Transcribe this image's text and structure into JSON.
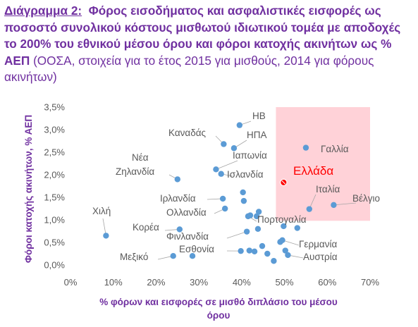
{
  "title": {
    "label": "Διάγραμμα 2:",
    "main": "Φόρος εισοδήματος και ασφαλιστικές εισφορές ως ποσοστό συνολικού κόστους μισθωτού ιδιωτικού τομέα με αποδοχές το 200% του εθνικού μέσου όρου και φόροι κατοχής ακινήτων ως % ΑΕΠ",
    "source": "(ΟΟΣΑ, στοιχεία για το έτος 2015 για μισθούς, 2014 για φόρους ακινήτων)"
  },
  "colors": {
    "point": "#5b9bd5",
    "highlight": "#ff0000",
    "highlight_region": "#ffc7ce",
    "leader": "#a6a6a6",
    "title": "#7030a0"
  },
  "chart_data": {
    "type": "scatter",
    "title": "Φόρος εισοδήματος και ασφαλιστικές εισφορές ως ποσοστό συνολικού κόστους μισθωτού ιδιωτικού τομέα με αποδοχές το 200% του εθνικού μέσου όρου και φόροι κατοχής ακινήτων ως % ΑΕΠ",
    "xlabel_line1": "% φόρων και εισφορές σε μισθό διπλάσιο του μέσου",
    "xlabel_line2": "όρου",
    "ylabel": "Φόροι κατοχής ακινήτων, % ΑΕΠ",
    "xlim": [
      0,
      70
    ],
    "ylim": [
      0,
      3.5
    ],
    "x_ticks": [
      0,
      10,
      20,
      30,
      40,
      50,
      60,
      70
    ],
    "x_tick_labels": [
      "0%",
      "10%",
      "20%",
      "30%",
      "40%",
      "50%",
      "60%",
      "70%"
    ],
    "y_ticks": [
      0,
      0.5,
      1.0,
      1.5,
      2.0,
      2.5,
      3.0,
      3.5
    ],
    "y_tick_labels": [
      "0,0%",
      "0,5%",
      "1,0%",
      "1,5%",
      "2,0%",
      "2,5%",
      "3,0%",
      "3,5%"
    ],
    "grid": false,
    "highlight_region": {
      "x": [
        48,
        70
      ],
      "y": [
        0.98,
        3.5
      ]
    },
    "labeled_points": [
      {
        "name": "ΗΒ",
        "x": 39.5,
        "y": 3.1
      },
      {
        "name": "Καναδάς",
        "x": 35.8,
        "y": 2.68
      },
      {
        "name": "ΗΠΑ",
        "x": 38.2,
        "y": 2.59
      },
      {
        "name": "Ιαπωνία",
        "x": 34.0,
        "y": 2.12
      },
      {
        "name": "Ισλανδία",
        "x": 35.2,
        "y": 2.02
      },
      {
        "name": "Νέα Ζηλανδία",
        "x": 25.0,
        "y": 1.9
      },
      {
        "name": "Ιρλανδία",
        "x": 35.6,
        "y": 1.47
      },
      {
        "name": "Ολλανδία",
        "x": 36.1,
        "y": 1.25
      },
      {
        "name": "Χιλή",
        "x": 8.3,
        "y": 0.65
      },
      {
        "name": "Κορέα",
        "x": 25.5,
        "y": 0.79
      },
      {
        "name": "Φινλανδία",
        "x": 41.2,
        "y": 0.74
      },
      {
        "name": "Εσθονία",
        "x": 39.8,
        "y": 0.31
      },
      {
        "name": "Μεξικό",
        "x": 24.0,
        "y": 0.2
      },
      {
        "name": "Πορτογαλία",
        "x": 41.5,
        "y": 1.08
      },
      {
        "name": "Γερμανία",
        "x": 49.5,
        "y": 0.55
      },
      {
        "name": "Αυστρία",
        "x": 50.8,
        "y": 0.22
      },
      {
        "name": "Γαλλία",
        "x": 55.0,
        "y": 2.6
      },
      {
        "name": "Ελλάδα",
        "x": 49.8,
        "y": 1.83
      },
      {
        "name": "Ιταλία",
        "x": 55.8,
        "y": 1.24
      },
      {
        "name": "Βέλγιο",
        "x": 61.5,
        "y": 1.33
      }
    ],
    "other_points": [
      {
        "x": 28.5,
        "y": 0.2
      },
      {
        "x": 40.3,
        "y": 1.61
      },
      {
        "x": 40.5,
        "y": 1.42
      },
      {
        "x": 42.0,
        "y": 1.1
      },
      {
        "x": 43.5,
        "y": 1.08
      },
      {
        "x": 44.0,
        "y": 1.18
      },
      {
        "x": 43.8,
        "y": 0.8
      },
      {
        "x": 41.8,
        "y": 0.32
      },
      {
        "x": 43.0,
        "y": 0.3
      },
      {
        "x": 44.8,
        "y": 0.42
      },
      {
        "x": 46.0,
        "y": 0.25
      },
      {
        "x": 47.5,
        "y": 0.09
      },
      {
        "x": 49.0,
        "y": 0.51
      },
      {
        "x": 49.8,
        "y": 0.86
      },
      {
        "x": 53.0,
        "y": 0.82
      },
      {
        "x": 50.2,
        "y": 0.32
      }
    ]
  }
}
